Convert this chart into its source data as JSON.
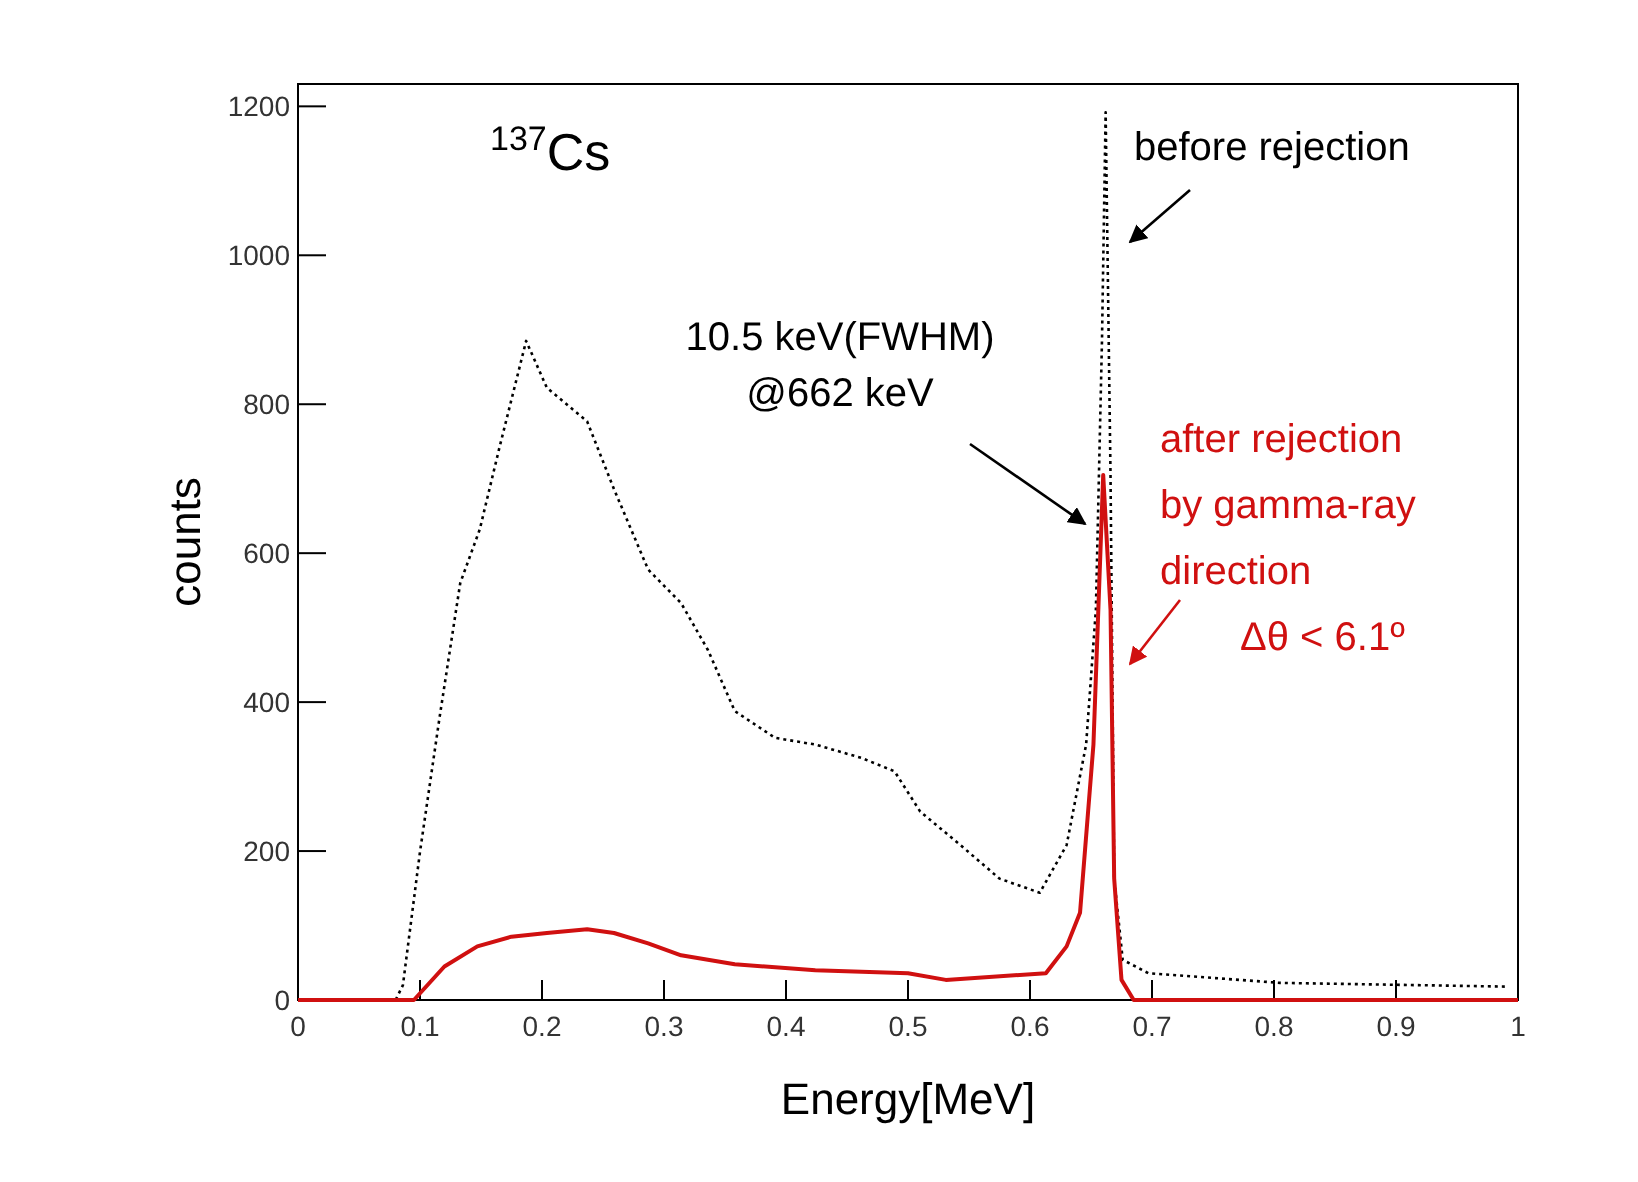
{
  "chart_data": {
    "type": "line",
    "xlabel": "Energy[MeV]",
    "ylabel": "counts",
    "xlim": [
      0,
      1
    ],
    "ylim": [
      0,
      1230
    ],
    "xticks": [
      0,
      0.1,
      0.2,
      0.3,
      0.4,
      0.5,
      0.6,
      0.7,
      0.8,
      0.9,
      1
    ],
    "yticks": [
      0,
      200,
      400,
      600,
      800,
      1000,
      1200
    ],
    "grid": false,
    "marker": "none",
    "series": [
      {
        "name": "before rejection",
        "color": "#000000",
        "line_style": "dotted",
        "x": [
          0,
          0.08,
          0.086,
          0.1,
          0.116,
          0.133,
          0.149,
          0.165,
          0.187,
          0.204,
          0.237,
          0.259,
          0.287,
          0.314,
          0.336,
          0.358,
          0.391,
          0.424,
          0.462,
          0.489,
          0.51,
          0.543,
          0.575,
          0.608,
          0.63,
          0.646,
          0.654,
          0.659,
          0.662,
          0.666,
          0.669,
          0.676,
          0.697,
          0.805,
          0.99
        ],
        "values": [
          0,
          0,
          20,
          199,
          379,
          560,
          632,
          741,
          885,
          822,
          777,
          686,
          578,
          533,
          470,
          388,
          352,
          343,
          325,
          307,
          253,
          208,
          163,
          144,
          208,
          343,
          524,
          885,
          1192,
          705,
          163,
          54,
          36,
          23,
          18
        ]
      },
      {
        "name": "after rejection\nby gamma-ray\ndirection\nΔθ < 6.1º",
        "color": "#d01010",
        "line_style": "solid",
        "x": [
          0,
          0.085,
          0.095,
          0.12,
          0.147,
          0.175,
          0.204,
          0.237,
          0.259,
          0.287,
          0.314,
          0.358,
          0.424,
          0.5,
          0.531,
          0.613,
          0.63,
          0.641,
          0.652,
          0.66,
          0.666,
          0.669,
          0.675,
          0.685,
          1
        ],
        "values": [
          0,
          0,
          0,
          45,
          72,
          85,
          90,
          95,
          90,
          76,
          60,
          48,
          40,
          36,
          27,
          36,
          72,
          117,
          343,
          705,
          524,
          163,
          27,
          0,
          0
        ]
      }
    ],
    "annotations": [
      "$^{137}$Cs",
      {
        "text": "10.5 keV(FWHM)\n@662 keV",
        "x": 0.655,
        "y": 650
      }
    ]
  }
}
